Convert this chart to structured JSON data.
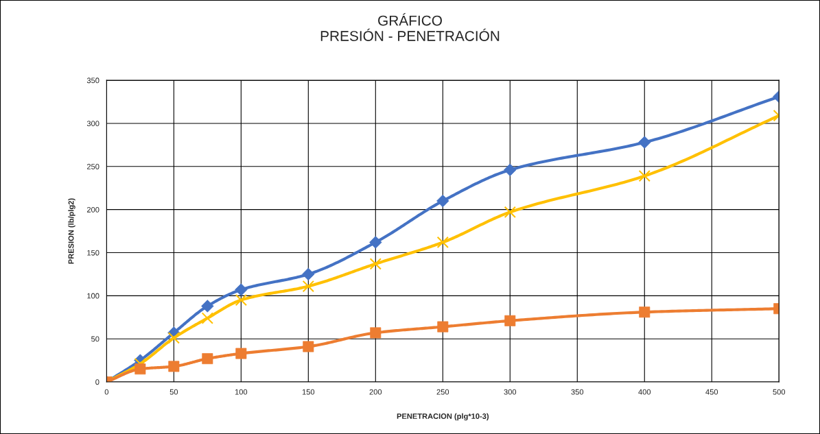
{
  "chart_data": {
    "type": "line",
    "title": "GRÁFICO\nPRESIÓN - PENETRACIÓN",
    "xlabel": "PENETRACION (plg*10-3)",
    "ylabel": "PRESION (lb/plg2)",
    "x": [
      0,
      25,
      50,
      75,
      100,
      150,
      200,
      250,
      300,
      400,
      500
    ],
    "series": [
      {
        "color": "#4472c4",
        "marker": "diamond",
        "values": [
          0,
          25,
          57,
          88,
          107,
          125,
          162,
          210,
          246,
          278,
          331
        ]
      },
      {
        "color": "#ffc000",
        "marker": "cross",
        "values": [
          0,
          21,
          51,
          74,
          95,
          111,
          137,
          162,
          197,
          239,
          309
        ]
      },
      {
        "color": "#ed7d31",
        "marker": "square",
        "values": [
          0,
          15,
          18,
          27,
          33,
          41,
          57,
          64,
          71,
          81,
          85
        ]
      }
    ],
    "xlim": [
      0,
      500
    ],
    "xticks": [
      0,
      50,
      100,
      150,
      200,
      250,
      300,
      350,
      400,
      450,
      500
    ],
    "ylim": [
      0,
      350
    ],
    "yticks": [
      0,
      50,
      100,
      150,
      200,
      250,
      300,
      350
    ],
    "grid": true
  }
}
